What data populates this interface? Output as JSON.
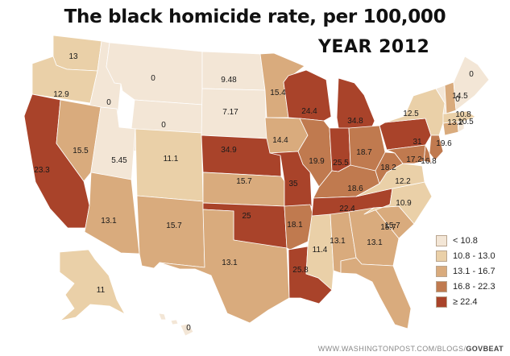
{
  "title": "The black homicide rate, per 100,000",
  "subtitle": "YEAR 2012",
  "credit_url": "WWW.WASHINGTONPOST.COM/BLOGS/",
  "credit_brand": "GOVBEAT",
  "colors": {
    "tier1": "#f3e6d6",
    "tier2": "#ead0a8",
    "tier3": "#d9ab7d",
    "tier4": "#c07a4f",
    "tier5": "#a9432a",
    "border": "#ffffff"
  },
  "legend": [
    {
      "label": "< 10.8",
      "tier": "tier1"
    },
    {
      "label": "10.8 - 13.0",
      "tier": "tier2"
    },
    {
      "label": "13.1 - 16.7",
      "tier": "tier3"
    },
    {
      "label": "16.8 - 22.3",
      "tier": "tier4"
    },
    {
      "label": "≥ 22.4",
      "tier": "tier5"
    }
  ],
  "states": [
    {
      "id": "WA",
      "value": "13",
      "tier": "tier2"
    },
    {
      "id": "OR",
      "value": "12.9",
      "tier": "tier2"
    },
    {
      "id": "CA",
      "value": "23.3",
      "tier": "tier5"
    },
    {
      "id": "ID",
      "value": "0",
      "tier": "tier1"
    },
    {
      "id": "NV",
      "value": "15.5",
      "tier": "tier3"
    },
    {
      "id": "MT",
      "value": "0",
      "tier": "tier1"
    },
    {
      "id": "WY",
      "value": "0",
      "tier": "tier1"
    },
    {
      "id": "UT",
      "value": "5.45",
      "tier": "tier1"
    },
    {
      "id": "AZ",
      "value": "13.1",
      "tier": "tier3"
    },
    {
      "id": "CO",
      "value": "11.1",
      "tier": "tier2"
    },
    {
      "id": "NM",
      "value": "15.7",
      "tier": "tier3"
    },
    {
      "id": "ND",
      "value": "9.48",
      "tier": "tier1"
    },
    {
      "id": "SD",
      "value": "7.17",
      "tier": "tier1"
    },
    {
      "id": "NE",
      "value": "34.9",
      "tier": "tier5"
    },
    {
      "id": "KS",
      "value": "15.7",
      "tier": "tier3"
    },
    {
      "id": "OK",
      "value": "25",
      "tier": "tier5"
    },
    {
      "id": "TX",
      "value": "13.1",
      "tier": "tier3"
    },
    {
      "id": "MN",
      "value": "15.4",
      "tier": "tier3"
    },
    {
      "id": "IA",
      "value": "14.4",
      "tier": "tier3"
    },
    {
      "id": "MO",
      "value": "35",
      "tier": "tier5"
    },
    {
      "id": "AR",
      "value": "18.1",
      "tier": "tier4"
    },
    {
      "id": "LA",
      "value": "25.8",
      "tier": "tier5"
    },
    {
      "id": "WI",
      "value": "24.4",
      "tier": "tier5"
    },
    {
      "id": "IL",
      "value": "19.9",
      "tier": "tier4"
    },
    {
      "id": "MI",
      "value": "34.8",
      "tier": "tier5"
    },
    {
      "id": "IN",
      "value": "25.5",
      "tier": "tier5"
    },
    {
      "id": "OH",
      "value": "18.7",
      "tier": "tier4"
    },
    {
      "id": "KY",
      "value": "18.6",
      "tier": "tier4"
    },
    {
      "id": "TN",
      "value": "22.4",
      "tier": "tier5"
    },
    {
      "id": "MS",
      "value": "11.4",
      "tier": "tier2"
    },
    {
      "id": "AL",
      "value": "13.1",
      "tier": "tier3"
    },
    {
      "id": "GA",
      "value": "13.1",
      "tier": "tier3"
    },
    {
      "id": "FL",
      "value": "15.7",
      "tier": "tier3"
    },
    {
      "id": "SC",
      "value": "15.7",
      "tier": "tier3"
    },
    {
      "id": "NC",
      "value": "10.9",
      "tier": "tier2"
    },
    {
      "id": "VA",
      "value": "12.2",
      "tier": "tier2"
    },
    {
      "id": "WV",
      "value": "18.2",
      "tier": "tier4"
    },
    {
      "id": "PA",
      "value": "31",
      "tier": "tier5"
    },
    {
      "id": "NY",
      "value": "12.5",
      "tier": "tier2"
    },
    {
      "id": "NJ",
      "value": "19.6",
      "tier": "tier4"
    },
    {
      "id": "DE",
      "value": "16.8",
      "tier": "tier4"
    },
    {
      "id": "MD",
      "value": "17.2",
      "tier": "tier4"
    },
    {
      "id": "CT",
      "value": "13.2",
      "tier": "tier3"
    },
    {
      "id": "RI",
      "value": "10.5",
      "tier": "tier1"
    },
    {
      "id": "MA",
      "value": "10.8",
      "tier": "tier2"
    },
    {
      "id": "VT",
      "value": "0",
      "tier": "tier1"
    },
    {
      "id": "NH",
      "value": "14.5",
      "tier": "tier3"
    },
    {
      "id": "ME",
      "value": "0",
      "tier": "tier1"
    },
    {
      "id": "AK",
      "value": "11",
      "tier": "tier2"
    },
    {
      "id": "HI",
      "value": "0",
      "tier": "tier1"
    }
  ]
}
